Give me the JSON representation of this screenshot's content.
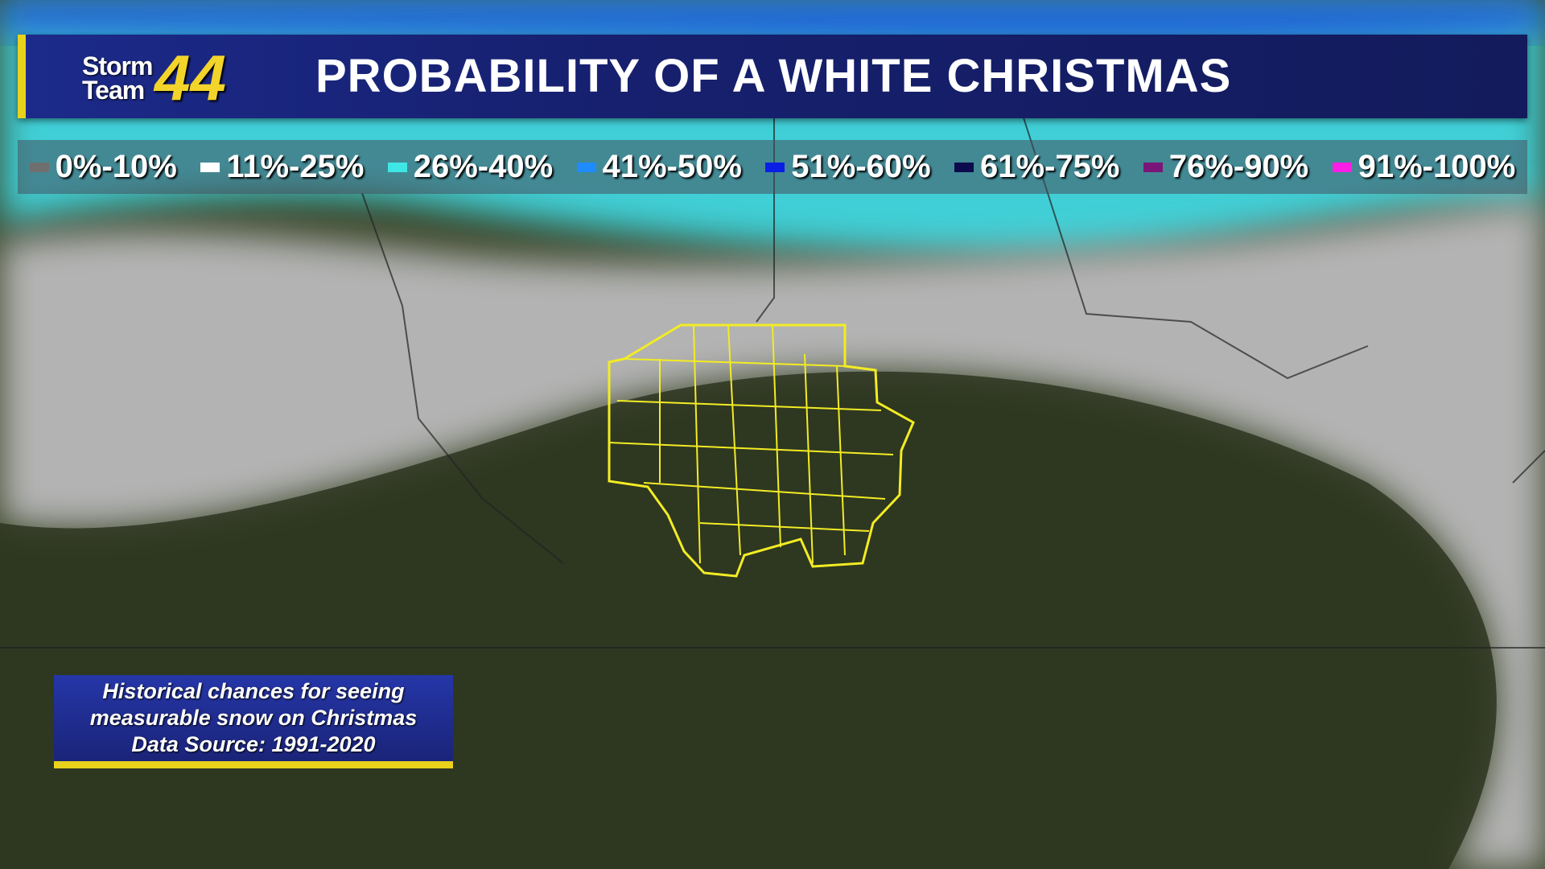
{
  "header": {
    "logo": {
      "line1": "Storm",
      "line2": "Team",
      "number": "44"
    },
    "title": "PROBABILITY OF A WHITE CHRISTMAS"
  },
  "legend": {
    "items": [
      {
        "label": "0%-10%",
        "color": "#6f6f6f"
      },
      {
        "label": "11%-25%",
        "color": "#ffffff"
      },
      {
        "label": "26%-40%",
        "color": "#3fe6e6"
      },
      {
        "label": "41%-50%",
        "color": "#1e8cff"
      },
      {
        "label": "51%-60%",
        "color": "#0a1ee6"
      },
      {
        "label": "61%-75%",
        "color": "#0b0b4e"
      },
      {
        "label": "76%-90%",
        "color": "#7a1678"
      },
      {
        "label": "91%-100%",
        "color": "#ff1ee6"
      }
    ]
  },
  "info_box": {
    "lines": [
      "Historical chances for seeing",
      "measurable snow on Christmas",
      "Data Source: 1991-2020"
    ]
  }
}
